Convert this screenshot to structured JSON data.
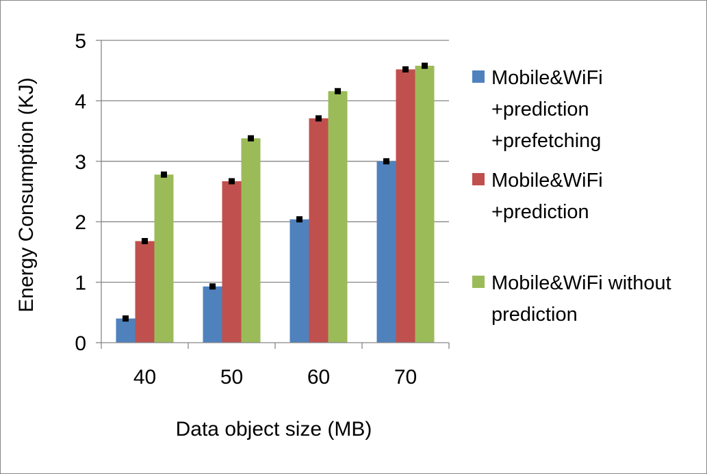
{
  "chart_data": {
    "type": "bar",
    "title": "",
    "xlabel": "Data object size (MB)",
    "ylabel": "Energy Consumption (KJ)",
    "categories": [
      "40",
      "50",
      "60",
      "70"
    ],
    "ylim": [
      0,
      5
    ],
    "yticks": [
      "0",
      "1",
      "2",
      "3",
      "4",
      "5"
    ],
    "grid": true,
    "legend_position": "right",
    "series": [
      {
        "name_lines": [
          "Mobile&WiFi",
          "+prediction",
          "+prefetching"
        ],
        "color": "#4F81BD",
        "values": [
          0.4,
          0.93,
          2.04,
          3.0
        ],
        "errors": [
          0.02,
          0.02,
          0.02,
          0.02
        ]
      },
      {
        "name_lines": [
          "Mobile&WiFi",
          "+prediction"
        ],
        "color": "#C0504D",
        "values": [
          1.68,
          2.67,
          3.71,
          4.52
        ],
        "errors": [
          0.02,
          0.02,
          0.02,
          0.04
        ]
      },
      {
        "name_lines": [
          "Mobile&WiFi without",
          "prediction"
        ],
        "color": "#9BBB59",
        "values": [
          2.78,
          3.38,
          4.16,
          4.58
        ],
        "errors": [
          0.02,
          0.02,
          0.04,
          0.04
        ]
      }
    ]
  }
}
